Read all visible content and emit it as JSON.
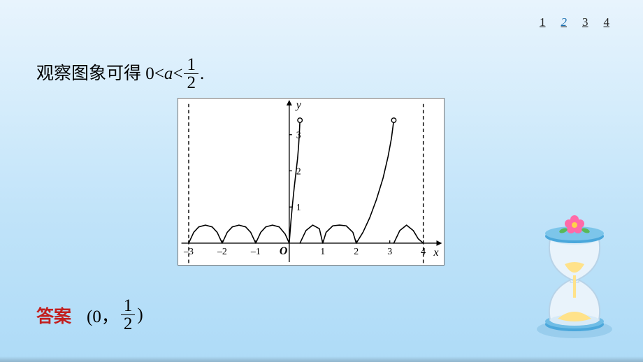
{
  "pager": {
    "items": [
      "1",
      "2",
      "3",
      "4"
    ],
    "active_index": 1,
    "fontsize": 17
  },
  "sentence": {
    "prefix_cn": "观察图象可得 ",
    "math_left": "0<",
    "math_var": "a",
    "math_mid": "<",
    "frac_num": "1",
    "frac_den": "2",
    "math_tail": ".",
    "fontsize": 25
  },
  "chart": {
    "type": "line",
    "background_color": "#ffffff",
    "border_color": "#777777",
    "axis_color": "#000000",
    "x_label": "x",
    "y_label": "y",
    "origin_label": "O",
    "origin_label_style": "bold-italic",
    "xlim": [
      -3.3,
      4.6
    ],
    "ylim": [
      -0.6,
      4.0
    ],
    "xticks": [
      -3,
      -2,
      -1,
      1,
      2,
      3,
      4
    ],
    "yticks": [
      1,
      2,
      3
    ],
    "tick_fontsize": 14,
    "label_fontsize": 16,
    "vlines": [
      {
        "x": -3,
        "style": "dashed",
        "color": "#000000"
      },
      {
        "x": 4,
        "style": "dashed",
        "color": "#000000"
      }
    ],
    "curves": [
      {
        "name": "small-bumps",
        "description": "|sin(pi x)|/2 styled bumps, period 1",
        "color": "#000000",
        "line_width": 1.6,
        "points": [
          [
            -3.0,
            0.0
          ],
          [
            -2.85,
            0.3
          ],
          [
            -2.7,
            0.45
          ],
          [
            -2.5,
            0.5
          ],
          [
            -2.3,
            0.45
          ],
          [
            -2.15,
            0.3
          ],
          [
            -2.0,
            0.0
          ],
          [
            -1.85,
            0.3
          ],
          [
            -1.7,
            0.45
          ],
          [
            -1.5,
            0.5
          ],
          [
            -1.3,
            0.45
          ],
          [
            -1.15,
            0.3
          ],
          [
            -1.0,
            0.0
          ],
          [
            -0.85,
            0.3
          ],
          [
            -0.7,
            0.45
          ],
          [
            -0.5,
            0.5
          ],
          [
            -0.3,
            0.45
          ],
          [
            -0.12,
            0.25
          ],
          [
            0.0,
            0.0
          ]
        ]
      },
      {
        "name": "left-rise",
        "description": "rising curve on (0,?] ending open at y≈3.4",
        "color": "#000000",
        "line_width": 1.6,
        "points": [
          [
            0.0,
            0.0
          ],
          [
            0.05,
            0.6
          ],
          [
            0.1,
            1.1
          ],
          [
            0.15,
            1.55
          ],
          [
            0.2,
            1.95
          ],
          [
            0.25,
            2.35
          ],
          [
            0.28,
            2.7
          ],
          [
            0.3,
            3.0
          ],
          [
            0.32,
            3.4
          ]
        ],
        "open_end": [
          0.32,
          3.4
        ]
      },
      {
        "name": "mid-bumps",
        "color": "#000000",
        "line_width": 1.6,
        "points": [
          [
            0.32,
            0.0
          ],
          [
            0.5,
            0.35
          ],
          [
            0.7,
            0.5
          ],
          [
            0.9,
            0.4
          ],
          [
            1.0,
            0.0
          ],
          [
            1.1,
            0.3
          ],
          [
            1.3,
            0.48
          ],
          [
            1.5,
            0.5
          ],
          [
            1.7,
            0.48
          ],
          [
            1.9,
            0.3
          ],
          [
            2.0,
            0.0
          ]
        ]
      },
      {
        "name": "right-rise",
        "color": "#000000",
        "line_width": 1.6,
        "points": [
          [
            2.0,
            0.0
          ],
          [
            2.2,
            0.3
          ],
          [
            2.4,
            0.7
          ],
          [
            2.6,
            1.2
          ],
          [
            2.8,
            1.8
          ],
          [
            2.95,
            2.4
          ],
          [
            3.05,
            2.9
          ],
          [
            3.12,
            3.4
          ]
        ],
        "open_end": [
          3.12,
          3.4
        ]
      },
      {
        "name": "tail-bumps",
        "color": "#000000",
        "line_width": 1.6,
        "points": [
          [
            3.12,
            0.0
          ],
          [
            3.3,
            0.35
          ],
          [
            3.5,
            0.5
          ],
          [
            3.7,
            0.35
          ],
          [
            3.85,
            0.12
          ],
          [
            4.0,
            0.0
          ]
        ]
      }
    ],
    "open_circle_radius": 3.3,
    "arrow_size": 7
  },
  "answer": {
    "label": "答案",
    "open": "(0，",
    "frac_num": "1",
    "frac_den": "2",
    "close": ")",
    "label_color": "#c21f1f",
    "fontsize": 25
  },
  "decoration": {
    "hourglass": {
      "glass_color": "#e9f3fb",
      "glass_stroke": "#b8d3e8",
      "sand_color": "#ffe28a",
      "cap_color": "#4aa7db",
      "flower_petal": "#ff6aa8",
      "flower_center": "#ffd24a",
      "leaf_color": "#58b858"
    }
  }
}
